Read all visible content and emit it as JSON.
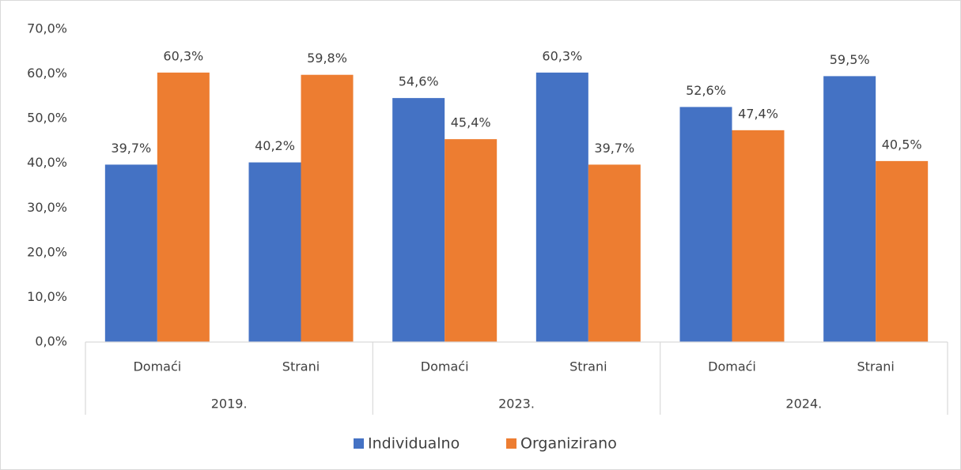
{
  "chart_data": {
    "type": "bar",
    "categories": [
      "Domaći",
      "Strani",
      "Domaći",
      "Strani",
      "Domaći",
      "Strani"
    ],
    "groups": [
      "2019.",
      "2023.",
      "2024."
    ],
    "series": [
      {
        "name": "Individualno",
        "color": "#4472c4",
        "values": [
          39.7,
          40.2,
          54.6,
          60.3,
          52.6,
          59.5
        ],
        "value_labels": [
          "39,7%",
          "40,2%",
          "54,6%",
          "60,3%",
          "52,6%",
          "59,5%"
        ]
      },
      {
        "name": "Organizirano",
        "color": "#ed7d31",
        "values": [
          60.3,
          59.8,
          45.4,
          39.7,
          47.4,
          40.5
        ],
        "value_labels": [
          "60,3%",
          "59,8%",
          "45,4%",
          "39,7%",
          "47,4%",
          "40,5%"
        ]
      }
    ],
    "ylim": [
      0,
      70
    ],
    "yticks": [
      {
        "value": 0,
        "label": "0,0%"
      },
      {
        "value": 10,
        "label": "10,0%"
      },
      {
        "value": 20,
        "label": "20,0%"
      },
      {
        "value": 30,
        "label": "30,0%"
      },
      {
        "value": 40,
        "label": "40,0%"
      },
      {
        "value": 50,
        "label": "50,0%"
      },
      {
        "value": 60,
        "label": "60,0%"
      },
      {
        "value": 70,
        "label": "70,0%"
      }
    ],
    "grid": false,
    "legend": "bottom"
  }
}
